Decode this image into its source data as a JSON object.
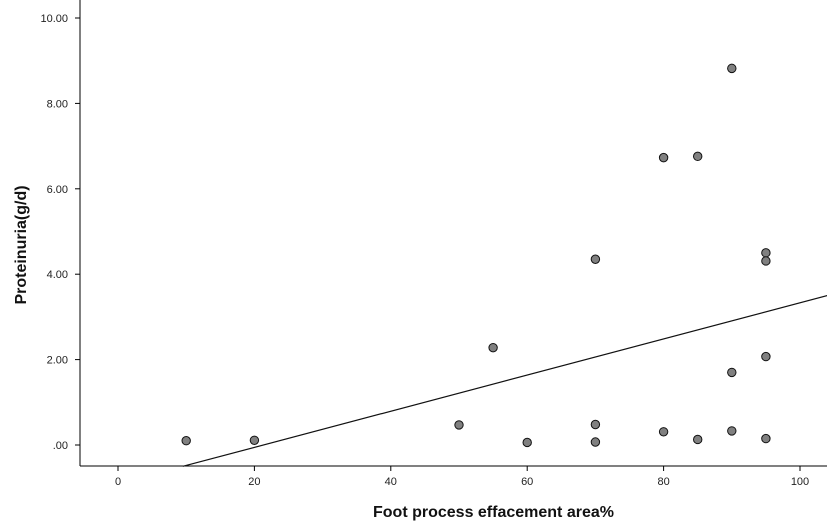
{
  "chart_data": {
    "type": "scatter",
    "title": "",
    "xlabel": "Foot process effacement area%",
    "ylabel": "Proteinuria(g/d)",
    "xlim": [
      -3,
      104
    ],
    "ylim": [
      -0.5,
      10.5
    ],
    "x_ticks": [
      0,
      20,
      40,
      60,
      80,
      100
    ],
    "y_ticks": [
      0,
      2,
      4,
      6,
      8,
      10
    ],
    "y_tick_labels": [
      ".00",
      "2.00",
      "4.00",
      "6.00",
      "8.00",
      "10.00"
    ],
    "grid": false,
    "legend": "none",
    "colors": {
      "marker_fill": "#808080",
      "marker_stroke": "#111111",
      "line": "#111111",
      "axis": "#000000"
    },
    "points": [
      {
        "x": 10,
        "y": 0.1
      },
      {
        "x": 20,
        "y": 0.11
      },
      {
        "x": 50,
        "y": 0.47
      },
      {
        "x": 55,
        "y": 2.28
      },
      {
        "x": 60,
        "y": 0.06
      },
      {
        "x": 70,
        "y": 4.35
      },
      {
        "x": 70,
        "y": 0.48
      },
      {
        "x": 70,
        "y": 0.07
      },
      {
        "x": 80,
        "y": 6.73
      },
      {
        "x": 80,
        "y": 0.31
      },
      {
        "x": 85,
        "y": 6.76
      },
      {
        "x": 85,
        "y": 0.13
      },
      {
        "x": 90,
        "y": 8.82
      },
      {
        "x": 90,
        "y": 1.7
      },
      {
        "x": 90,
        "y": 0.33
      },
      {
        "x": 95,
        "y": 4.5
      },
      {
        "x": 95,
        "y": 4.31
      },
      {
        "x": 95,
        "y": 2.07
      },
      {
        "x": 95,
        "y": 0.15
      }
    ],
    "fit_line": {
      "x": [
        9.5,
        104
      ],
      "y": [
        -0.5,
        3.5
      ]
    }
  }
}
